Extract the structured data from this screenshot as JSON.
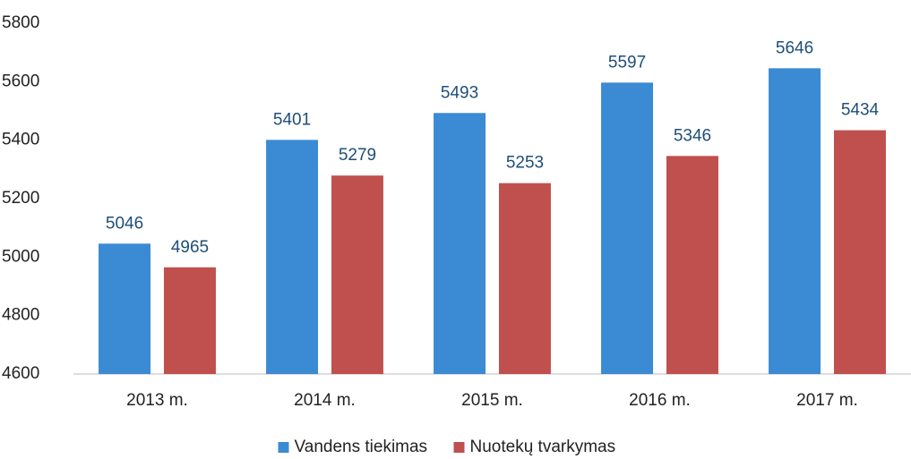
{
  "chart_data": {
    "type": "bar",
    "categories": [
      "2013 m.",
      "2014 m.",
      "2015 m.",
      "2016 m.",
      "2017 m."
    ],
    "series": [
      {
        "name": "Vandens tiekimas",
        "color": "#3b8ad4",
        "values": [
          5046,
          5401,
          5493,
          5597,
          5646
        ]
      },
      {
        "name": "Nuotekų tvarkymas",
        "color": "#c0504d",
        "values": [
          4965,
          5279,
          5253,
          5346,
          5434
        ]
      }
    ],
    "ylim": [
      4600,
      5800
    ],
    "yticks": [
      4600,
      4800,
      5000,
      5200,
      5400,
      5600,
      5800
    ],
    "grid": false,
    "legend": "bottom"
  }
}
